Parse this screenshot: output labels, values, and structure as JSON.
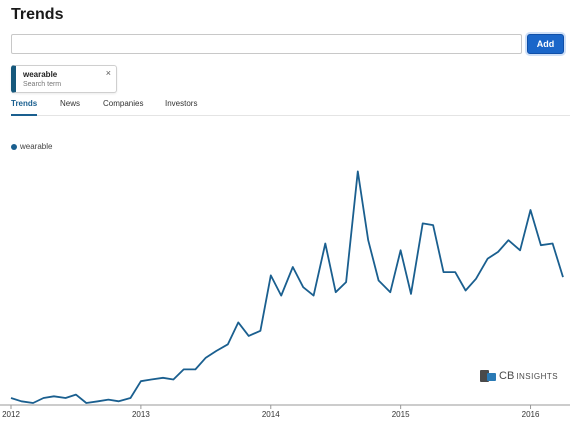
{
  "header": {
    "title": "Trends"
  },
  "search": {
    "value": "",
    "placeholder": "",
    "add_label": "Add"
  },
  "term_chip": {
    "term": "wearable",
    "subtitle": "Search term",
    "close_symbol": "×"
  },
  "tabs": [
    {
      "label": "Trends",
      "active": true
    },
    {
      "label": "News",
      "active": false
    },
    {
      "label": "Companies",
      "active": false
    },
    {
      "label": "Investors",
      "active": false
    }
  ],
  "legend": {
    "label": "wearable"
  },
  "logo": {
    "brand": "CB",
    "text": "INSIGHTS"
  },
  "colors": {
    "series": "#1a5f8f",
    "accent": "#1a66c9"
  },
  "chart_data": {
    "type": "line",
    "series": [
      {
        "name": "wearable",
        "points": [
          [
            2012.0,
            3
          ],
          [
            2012.08,
            1
          ],
          [
            2012.17,
            0
          ],
          [
            2012.25,
            3
          ],
          [
            2012.33,
            4
          ],
          [
            2012.42,
            3
          ],
          [
            2012.5,
            5
          ],
          [
            2012.58,
            0
          ],
          [
            2012.67,
            1
          ],
          [
            2012.75,
            2
          ],
          [
            2012.83,
            1
          ],
          [
            2012.92,
            3
          ],
          [
            2013.0,
            13
          ],
          [
            2013.08,
            14
          ],
          [
            2013.17,
            15
          ],
          [
            2013.25,
            14
          ],
          [
            2013.33,
            20
          ],
          [
            2013.42,
            20
          ],
          [
            2013.5,
            27
          ],
          [
            2013.58,
            31
          ],
          [
            2013.67,
            35
          ],
          [
            2013.75,
            48
          ],
          [
            2013.83,
            40
          ],
          [
            2013.92,
            43
          ],
          [
            2014.0,
            76
          ],
          [
            2014.08,
            64
          ],
          [
            2014.17,
            81
          ],
          [
            2014.25,
            69
          ],
          [
            2014.33,
            64
          ],
          [
            2014.42,
            95
          ],
          [
            2014.5,
            66
          ],
          [
            2014.58,
            72
          ],
          [
            2014.67,
            138
          ],
          [
            2014.75,
            97
          ],
          [
            2014.83,
            73
          ],
          [
            2014.92,
            66
          ],
          [
            2015.0,
            91
          ],
          [
            2015.08,
            65
          ],
          [
            2015.17,
            107
          ],
          [
            2015.25,
            106
          ],
          [
            2015.33,
            78
          ],
          [
            2015.42,
            78
          ],
          [
            2015.5,
            67
          ],
          [
            2015.58,
            74
          ],
          [
            2015.67,
            86
          ],
          [
            2015.75,
            90
          ],
          [
            2015.83,
            97
          ],
          [
            2015.92,
            91
          ],
          [
            2016.0,
            115
          ],
          [
            2016.08,
            94
          ],
          [
            2016.17,
            95
          ],
          [
            2016.25,
            75
          ]
        ]
      }
    ],
    "x_ticks": [
      {
        "value": 2012,
        "label": "2012"
      },
      {
        "value": 2013,
        "label": "2013"
      },
      {
        "value": 2014,
        "label": "2014"
      },
      {
        "value": 2015,
        "label": "2015"
      },
      {
        "value": 2016,
        "label": "2016"
      }
    ],
    "xlim": [
      2012,
      2016.25
    ],
    "ylim": [
      0,
      140
    ],
    "y_axis_labels": false,
    "grid": false,
    "legend_position": "top-left"
  }
}
